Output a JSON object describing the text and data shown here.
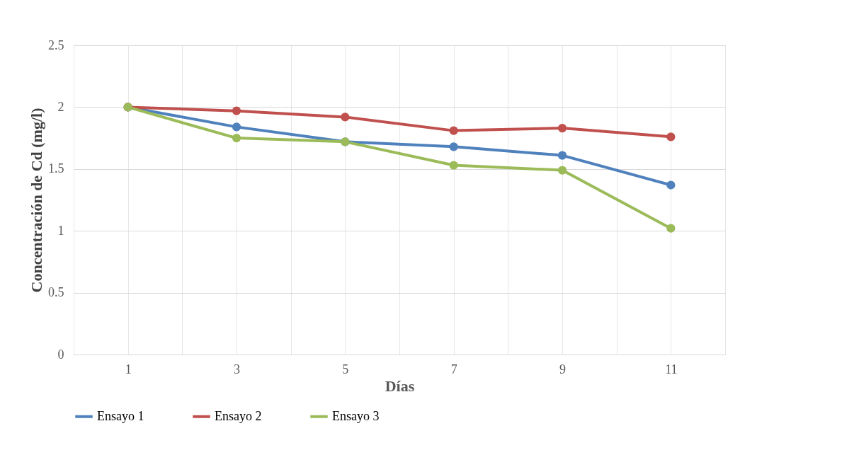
{
  "chart_data": {
    "type": "line",
    "xlabel": "Días",
    "ylabel": "Concentración de Cd (mg/l)",
    "x": [
      1,
      3,
      5,
      7,
      9,
      11
    ],
    "xlim": [
      0,
      12
    ],
    "xticks": [
      {
        "value": 0,
        "label": null
      },
      1,
      {
        "value": 2,
        "label": null
      },
      3,
      {
        "value": 4,
        "label": null
      },
      5,
      {
        "value": 6,
        "label": null
      },
      7,
      {
        "value": 8,
        "label": null
      },
      9,
      {
        "value": 10,
        "label": null
      },
      11,
      {
        "value": 12,
        "label": null
      }
    ],
    "ylim": [
      0,
      2.5
    ],
    "yticks": [
      0,
      0.5,
      1,
      1.5,
      2,
      2.5
    ],
    "series": [
      {
        "name": "Ensayo 1",
        "color": "#4f81bd",
        "values": [
          2,
          1.84,
          1.72,
          1.68,
          1.61,
          1.37
        ]
      },
      {
        "name": "Ensayo 2",
        "color": "#c0504d",
        "values": [
          2,
          1.97,
          1.92,
          1.81,
          1.83,
          1.76
        ]
      },
      {
        "name": "Ensayo 3",
        "color": "#9bbb59",
        "values": [
          2,
          1.75,
          1.72,
          1.53,
          1.49,
          1.02
        ]
      }
    ],
    "grid": true,
    "legend": "bottom",
    "marker": "circle",
    "line_style": "solid"
  }
}
